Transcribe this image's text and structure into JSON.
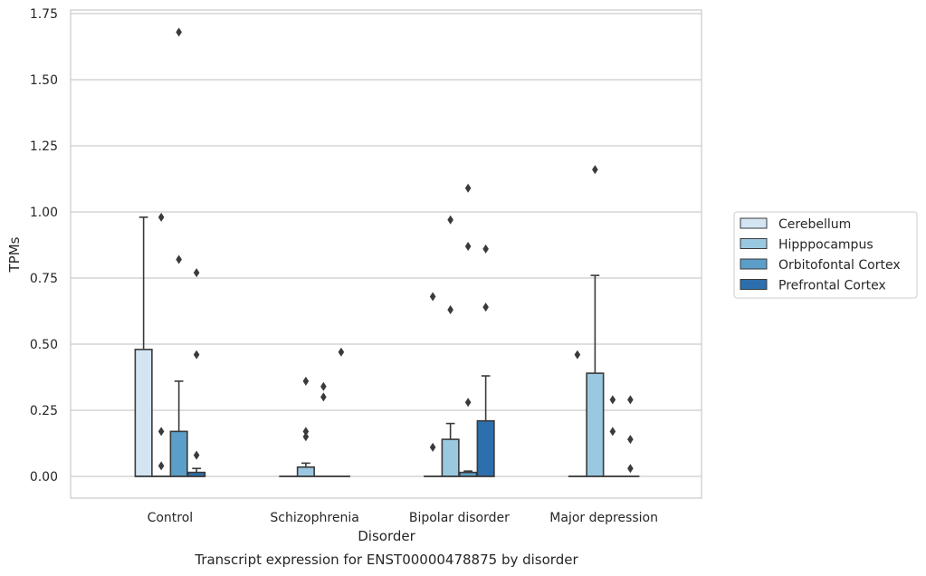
{
  "chart_data": {
    "type": "boxplot",
    "xlabel": "Disorder",
    "ylabel": "TPMs",
    "caption": "Transcript expression for ENST00000478875 by disorder",
    "categories": [
      "Control",
      "Schizophrenia",
      "Bipolar disorder",
      "Major depression"
    ],
    "ylim": [
      -0.08,
      1.76
    ],
    "yticks": [
      0.0,
      0.25,
      0.5,
      0.75,
      1.0,
      1.25,
      1.5,
      1.75
    ],
    "ytick_labels": [
      "0.00",
      "0.25",
      "0.50",
      "0.75",
      "1.00",
      "1.25",
      "1.50",
      "1.75"
    ],
    "grid": "horizontal",
    "legend_position": "right",
    "series": [
      {
        "name": "Cerebellum",
        "color": "#d3e4f3",
        "boxes": [
          {
            "q1": 0.0,
            "median": 0.0,
            "q3": 0.48,
            "whisker_low": 0.0,
            "whisker_high": 0.98,
            "outliers": []
          },
          {
            "q1": 0.0,
            "median": 0.0,
            "q3": 0.0,
            "whisker_low": 0.0,
            "whisker_high": 0.0,
            "outliers": []
          },
          {
            "q1": 0.0,
            "median": 0.0,
            "q3": 0.0,
            "whisker_low": 0.0,
            "whisker_high": 0.0,
            "outliers": [
              0.68,
              0.11
            ]
          },
          {
            "q1": 0.0,
            "median": 0.0,
            "q3": 0.0,
            "whisker_low": 0.0,
            "whisker_high": 0.0,
            "outliers": [
              0.46
            ]
          }
        ]
      },
      {
        "name": "Hipppocampus",
        "color": "#9ac8e0",
        "boxes": [
          {
            "q1": 0.0,
            "median": 0.0,
            "q3": 0.0,
            "whisker_low": 0.0,
            "whisker_high": 0.0,
            "outliers": [
              0.98,
              0.17,
              0.04
            ]
          },
          {
            "q1": 0.0,
            "median": 0.0,
            "q3": 0.035,
            "whisker_low": 0.0,
            "whisker_high": 0.05,
            "outliers": [
              0.36,
              0.17,
              0.15
            ]
          },
          {
            "q1": 0.0,
            "median": 0.0,
            "q3": 0.14,
            "whisker_low": 0.0,
            "whisker_high": 0.2,
            "outliers": [
              0.97,
              0.63
            ]
          },
          {
            "q1": 0.0,
            "median": 0.0,
            "q3": 0.39,
            "whisker_low": 0.0,
            "whisker_high": 0.76,
            "outliers": [
              1.16
            ]
          }
        ]
      },
      {
        "name": "Orbitofontal Cortex",
        "color": "#5a9ec9",
        "boxes": [
          {
            "q1": 0.0,
            "median": 0.0,
            "q3": 0.17,
            "whisker_low": 0.0,
            "whisker_high": 0.36,
            "outliers": [
              1.68,
              0.82
            ]
          },
          {
            "q1": 0.0,
            "median": 0.0,
            "q3": 0.0,
            "whisker_low": 0.0,
            "whisker_high": 0.0,
            "outliers": [
              0.34,
              0.3
            ]
          },
          {
            "q1": 0.0,
            "median": 0.0,
            "q3": 0.015,
            "whisker_low": 0.0,
            "whisker_high": 0.02,
            "outliers": [
              1.09,
              0.87,
              0.28
            ]
          },
          {
            "q1": 0.0,
            "median": 0.0,
            "q3": 0.0,
            "whisker_low": 0.0,
            "whisker_high": 0.0,
            "outliers": [
              0.29,
              0.17
            ]
          }
        ]
      },
      {
        "name": "Prefrontal Cortex",
        "color": "#2d6fad",
        "boxes": [
          {
            "q1": 0.0,
            "median": 0.0,
            "q3": 0.015,
            "whisker_low": 0.0,
            "whisker_high": 0.03,
            "outliers": [
              0.77,
              0.46,
              0.08
            ]
          },
          {
            "q1": 0.0,
            "median": 0.0,
            "q3": 0.0,
            "whisker_low": 0.0,
            "whisker_high": 0.0,
            "outliers": [
              0.47
            ]
          },
          {
            "q1": 0.0,
            "median": 0.0,
            "q3": 0.21,
            "whisker_low": 0.0,
            "whisker_high": 0.38,
            "outliers": [
              0.86,
              0.64
            ]
          },
          {
            "q1": 0.0,
            "median": 0.0,
            "q3": 0.0,
            "whisker_low": 0.0,
            "whisker_high": 0.0,
            "outliers": [
              0.29,
              0.14,
              0.03
            ]
          }
        ]
      }
    ]
  }
}
